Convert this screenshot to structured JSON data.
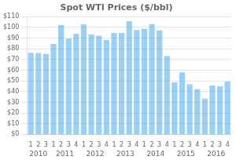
{
  "chart_data": {
    "type": "bar",
    "title": "Spot WTI Prices ($/bbl)",
    "categories": [
      "1",
      "2",
      "3",
      "1",
      "2",
      "3",
      "4",
      "1",
      "2",
      "3",
      "4",
      "1",
      "2",
      "3",
      "4",
      "1",
      "2",
      "3",
      "4",
      "1",
      "2",
      "3",
      "4",
      "1",
      "2",
      "3",
      "4"
    ],
    "values": [
      76.35,
      76.04,
      75.24,
      84.55,
      102.34,
      89.54,
      94.06,
      102.88,
      93.35,
      92.2,
      88.17,
      94.77,
      94.83,
      105.79,
      97.45,
      98.61,
      103.03,
      97.17,
      73.15,
      48.63,
      57.94,
      46.77,
      42.18,
      33.45,
      45.64,
      44.94,
      49.29
    ],
    "annotations": [
      "2010",
      "2011",
      "2012",
      "2013",
      "2014",
      "2015",
      "2016"
    ],
    "ylim": [
      0,
      110
    ],
    "yticks": [
      {
        "value": 0,
        "label": "$0"
      },
      {
        "value": 10,
        "label": "$10"
      },
      {
        "value": 20,
        "label": "$20"
      },
      {
        "value": 30,
        "label": "$30"
      },
      {
        "value": 40,
        "label": "$40"
      },
      {
        "value": 50,
        "label": "$50"
      },
      {
        "value": 60,
        "label": "$60"
      },
      {
        "value": 70,
        "label": "$70"
      },
      {
        "value": 80,
        "label": "$80"
      },
      {
        "value": 90,
        "label": "$90"
      },
      {
        "value": 100,
        "label": "$100"
      },
      {
        "value": 110,
        "label": "$110"
      }
    ],
    "grid": true
  }
}
